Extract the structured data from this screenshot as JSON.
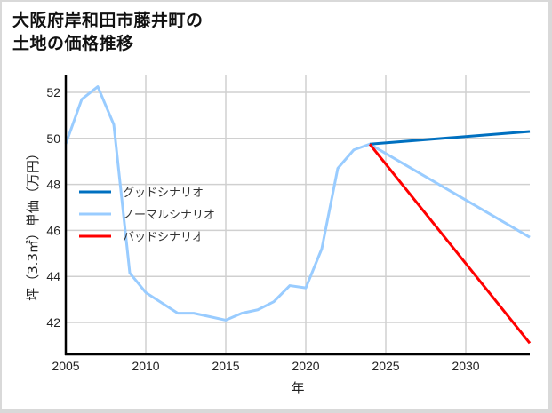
{
  "title_line1": "大阪府岸和田市藤井町の",
  "title_line2": "土地の価格推移",
  "chart_data": {
    "type": "line",
    "title": "大阪府岸和田市藤井町の土地の価格推移",
    "xlabel": "年",
    "ylabel": "坪（3.3㎡）単価（万円）",
    "xlim": [
      2005,
      2034
    ],
    "ylim": [
      40.6,
      52.9
    ],
    "x_ticks": [
      2005,
      2010,
      2015,
      2020,
      2025,
      2030
    ],
    "y_ticks": [
      42,
      44,
      46,
      48,
      50,
      52
    ],
    "grid": true,
    "legend_position": "center-left",
    "series": [
      {
        "name": "グッドシナリオ",
        "color": "#0070C0",
        "x": [
          2024,
          2034
        ],
        "values": [
          49.75,
          50.3
        ]
      },
      {
        "name": "ノーマルシナリオ",
        "color": "#99CCFF",
        "x": [
          2005,
          2006,
          2007,
          2008,
          2009,
          2010,
          2011,
          2012,
          2013,
          2014,
          2015,
          2016,
          2017,
          2018,
          2019,
          2020,
          2021,
          2022,
          2023,
          2024,
          2034
        ],
        "values": [
          49.76,
          51.7,
          52.25,
          50.6,
          44.15,
          43.3,
          42.85,
          42.4,
          42.4,
          42.25,
          42.1,
          42.4,
          42.55,
          42.9,
          43.6,
          43.5,
          45.2,
          48.7,
          49.5,
          49.75,
          45.7
        ]
      },
      {
        "name": "バッドシナリオ",
        "color": "#FF0000",
        "x": [
          2024,
          2034
        ],
        "values": [
          49.75,
          41.1
        ]
      }
    ]
  }
}
